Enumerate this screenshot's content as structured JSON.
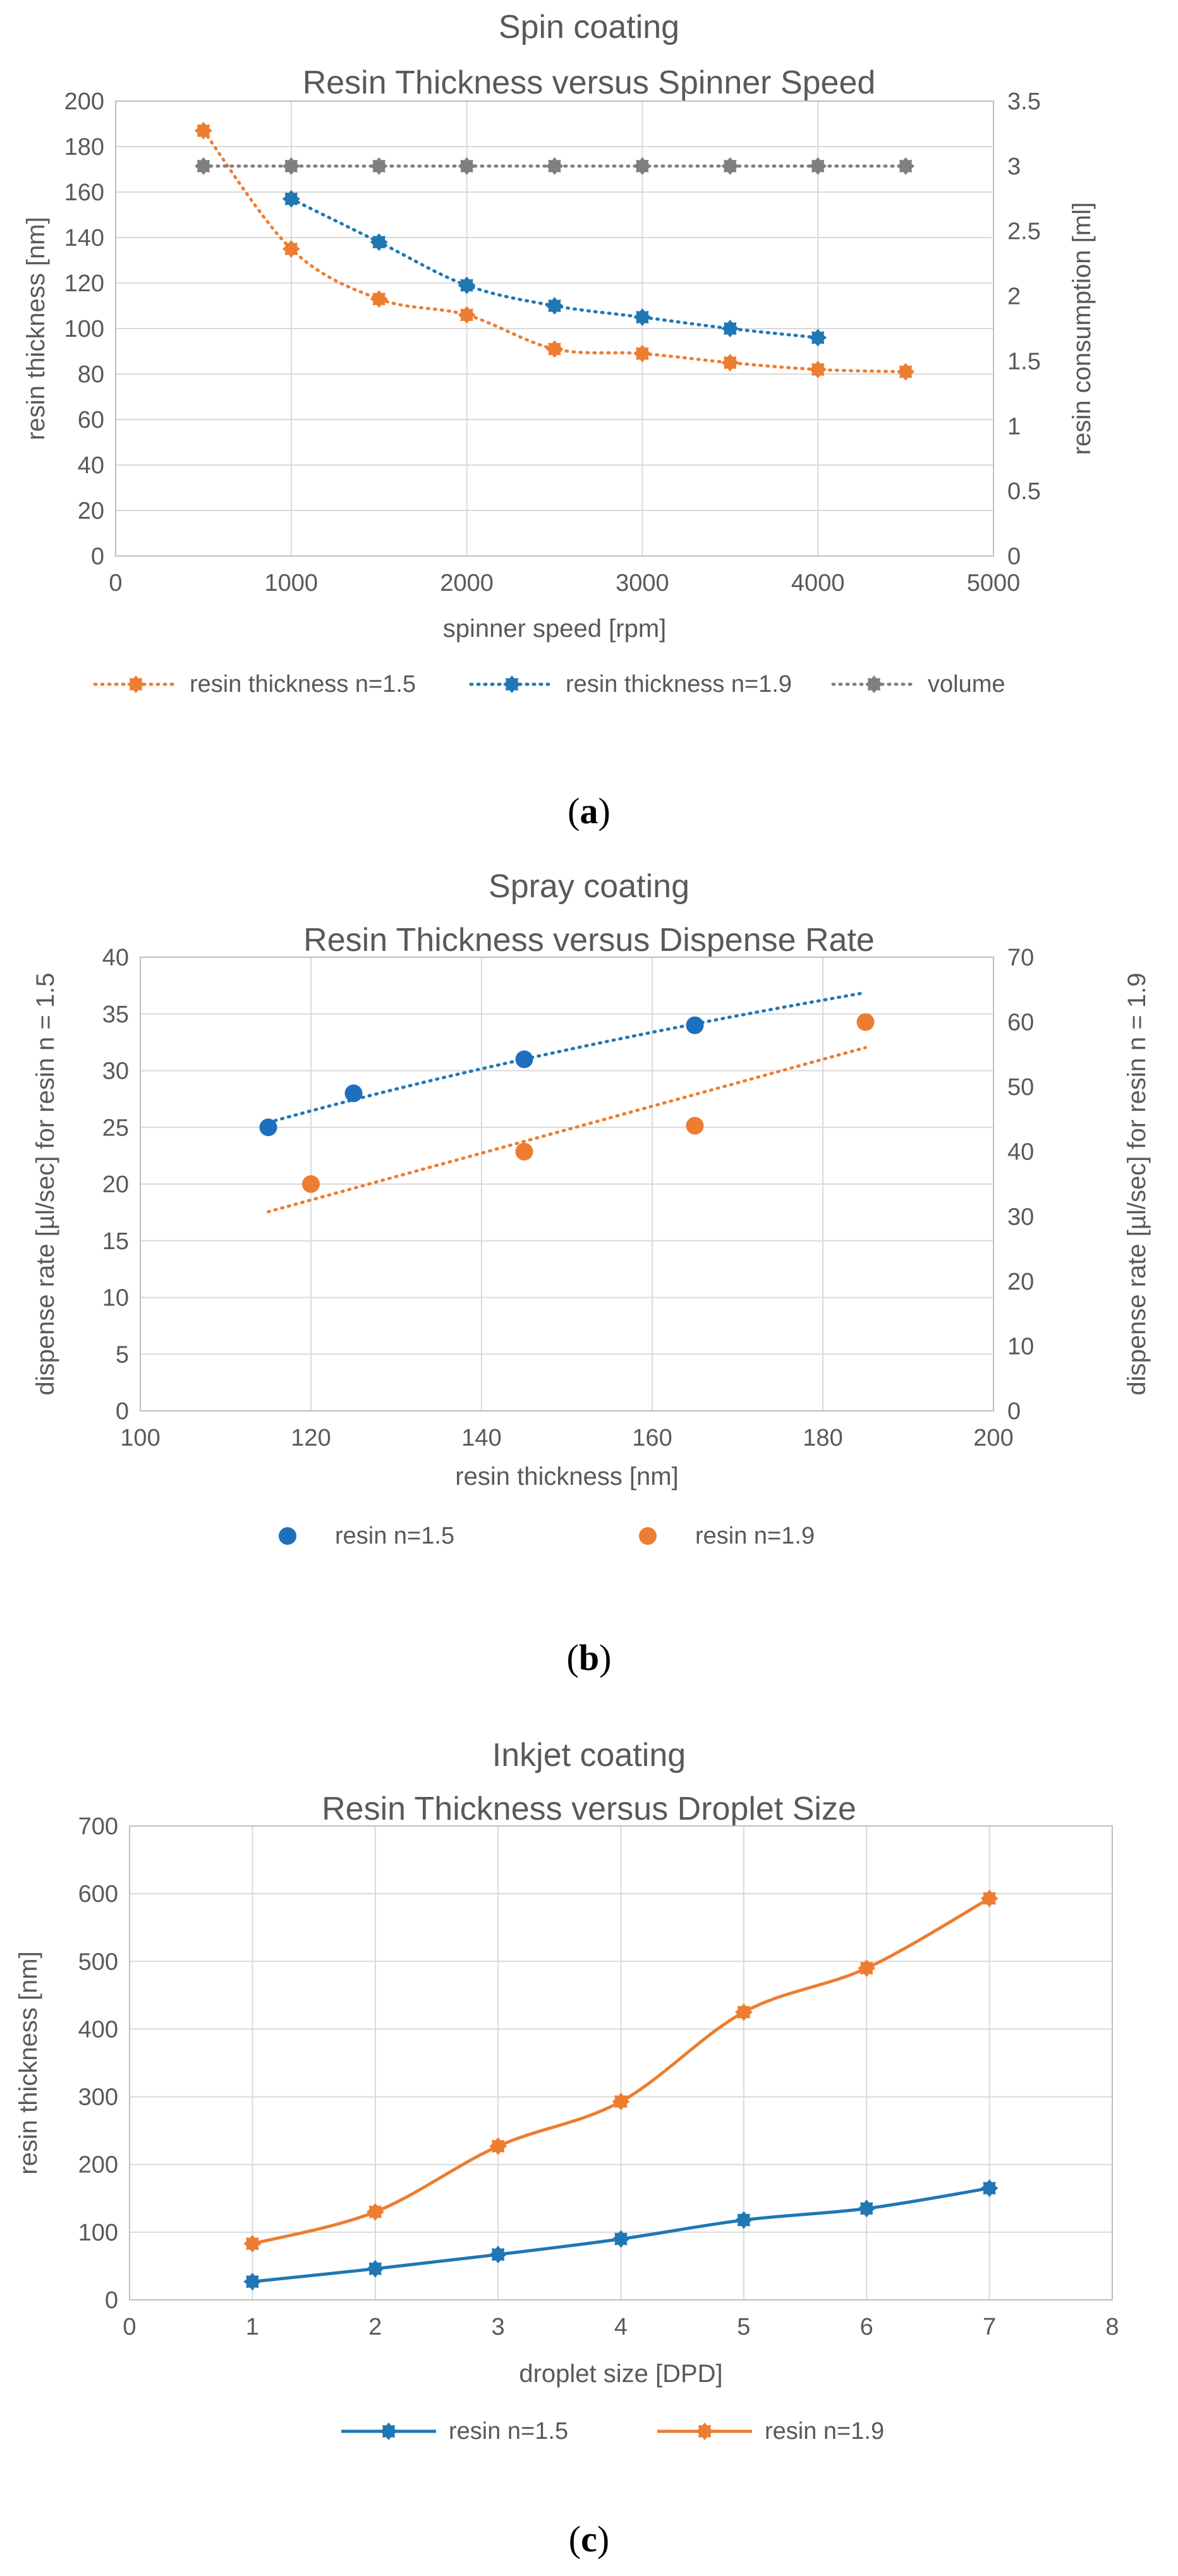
{
  "chart_data": [
    {
      "type": "line",
      "title": "Spin coating",
      "subtitle": "Resin Thickness versus Spinner Speed",
      "xlabel": "spinner speed [rpm]",
      "ylabel": "resin thickness [nm]",
      "y2label": "resin consumption [ml]",
      "xlim": [
        0,
        5000
      ],
      "xticks": [
        "0",
        "1000",
        "2000",
        "3000",
        "4000",
        "5000"
      ],
      "ylim": [
        0,
        200
      ],
      "yticks": [
        "0",
        "20",
        "40",
        "60",
        "80",
        "100",
        "120",
        "140",
        "160",
        "180",
        "200"
      ],
      "y2lim": [
        0,
        3.5
      ],
      "y2ticks": [
        "0",
        "0.5",
        "1",
        "1.5",
        "2",
        "2.5",
        "3",
        "3.5"
      ],
      "grid": true,
      "legend": "bottom",
      "series": [
        {
          "name": "resin thickness n=1.5",
          "axis": "left",
          "style": "dotted",
          "color": "#ED7D31",
          "x": [
            500,
            1000,
            1500,
            2000,
            2500,
            3000,
            3500,
            4000,
            4500
          ],
          "y": [
            187,
            135,
            113,
            106,
            91,
            89,
            85,
            82,
            81
          ]
        },
        {
          "name": "resin thickness n=1.9",
          "axis": "left",
          "style": "dotted",
          "color": "#1F77B4",
          "x": [
            1000,
            1500,
            2000,
            2500,
            3000,
            3500,
            4000
          ],
          "y": [
            157,
            138,
            119,
            110,
            105,
            100,
            96
          ]
        },
        {
          "name": "volume",
          "axis": "right",
          "style": "dotted",
          "color": "#7F7F7F",
          "x": [
            500,
            1000,
            1500,
            2000,
            2500,
            3000,
            3500,
            4000,
            4500
          ],
          "y": [
            3,
            3,
            3,
            3,
            3,
            3,
            3,
            3,
            3
          ]
        }
      ],
      "caption": "a"
    },
    {
      "type": "scatter",
      "title": "Spray coating",
      "subtitle": "Resin Thickness versus Dispense Rate",
      "xlabel": "resin thickness [nm]",
      "ylabel": "dispense rate [µl/sec] for resin n = 1.5",
      "y2label": "dispense rate [µl/sec] for resin n = 1.9",
      "xlim": [
        100,
        200
      ],
      "xticks": [
        "100",
        "120",
        "140",
        "160",
        "180",
        "200"
      ],
      "ylim": [
        0,
        40
      ],
      "yticks": [
        "0",
        "5",
        "10",
        "15",
        "20",
        "25",
        "30",
        "35",
        "40"
      ],
      "y2lim": [
        0,
        70
      ],
      "y2ticks": [
        "0",
        "10",
        "20",
        "30",
        "40",
        "50",
        "60",
        "70"
      ],
      "grid": true,
      "legend": "bottom",
      "series": [
        {
          "name": "resin n=1.5",
          "axis": "left",
          "color": "#1F6FBF",
          "x": [
            115,
            125,
            145,
            165
          ],
          "y": [
            25,
            28,
            31,
            34
          ],
          "trendline": {
            "kind": "log",
            "x": [
              115,
              185
            ],
            "color": "#1F77B4"
          }
        },
        {
          "name": "resin n=1.9",
          "axis": "right",
          "color": "#ED7D31",
          "x": [
            120,
            145,
            165,
            185
          ],
          "y": [
            35,
            40,
            44,
            60
          ],
          "trendline": {
            "kind": "linear",
            "x": [
              115,
              185
            ],
            "color": "#ED7D31"
          }
        }
      ],
      "caption": "b"
    },
    {
      "type": "line",
      "title": "Inkjet coating",
      "subtitle": "Resin Thickness versus Droplet Size",
      "xlabel": "droplet size [DPD]",
      "ylabel": "resin thickness [nm]",
      "xlim": [
        0,
        8
      ],
      "xticks": [
        "0",
        "1",
        "2",
        "3",
        "4",
        "5",
        "6",
        "7",
        "8"
      ],
      "ylim": [
        0,
        700
      ],
      "yticks": [
        "0",
        "100",
        "200",
        "300",
        "400",
        "500",
        "600",
        "700"
      ],
      "grid": true,
      "legend": "bottom",
      "series": [
        {
          "name": "resin n=1.5",
          "style": "solid",
          "color": "#1F77B4",
          "x": [
            1,
            2,
            3,
            4,
            5,
            6,
            7
          ],
          "y": [
            27,
            46,
            67,
            90,
            118,
            135,
            165
          ]
        },
        {
          "name": "resin n=1.9",
          "style": "solid",
          "color": "#ED7D31",
          "x": [
            1,
            2,
            3,
            4,
            5,
            6,
            7
          ],
          "y": [
            83,
            130,
            227,
            293,
            425,
            490,
            593
          ]
        }
      ],
      "caption": "c"
    }
  ]
}
